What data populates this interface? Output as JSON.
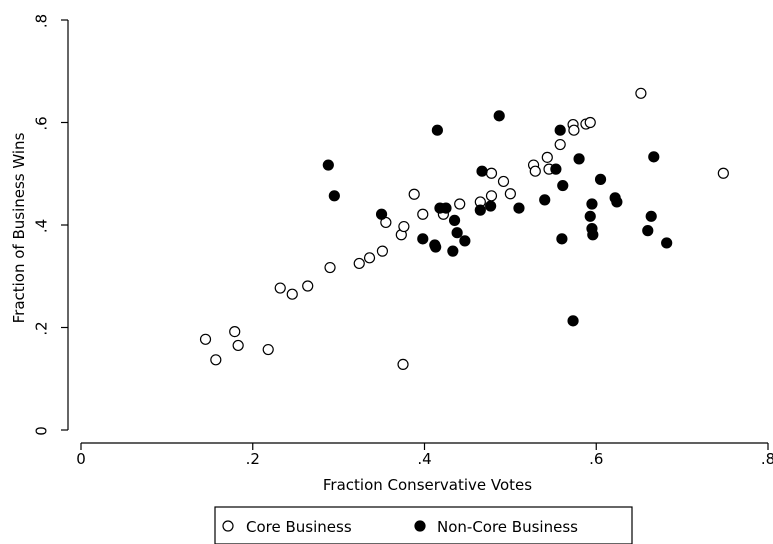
{
  "chart_data": {
    "type": "scatter",
    "xlabel": "Fraction Conservative Votes",
    "ylabel": "Fraction of Business Wins",
    "xlim": [
      0,
      0.8
    ],
    "ylim": [
      0,
      0.8
    ],
    "x_ticks": [
      {
        "value": 0,
        "label": "0"
      },
      {
        "value": 0.2,
        "label": ".2"
      },
      {
        "value": 0.4,
        "label": ".4"
      },
      {
        "value": 0.6,
        "label": ".6"
      },
      {
        "value": 0.8,
        "label": ".8"
      }
    ],
    "y_ticks": [
      {
        "value": 0,
        "label": "0"
      },
      {
        "value": 0.2,
        "label": ".2"
      },
      {
        "value": 0.4,
        "label": ".4"
      },
      {
        "value": 0.6,
        "label": ".6"
      },
      {
        "value": 0.8,
        "label": ".8"
      }
    ],
    "grid": false,
    "legend": {
      "position": "bottom"
    },
    "series": [
      {
        "name": "Core Business",
        "marker": "hollow-circle",
        "points": [
          [
            0.145,
            0.177
          ],
          [
            0.157,
            0.137
          ],
          [
            0.179,
            0.192
          ],
          [
            0.183,
            0.165
          ],
          [
            0.218,
            0.157
          ],
          [
            0.232,
            0.277
          ],
          [
            0.246,
            0.265
          ],
          [
            0.264,
            0.281
          ],
          [
            0.29,
            0.317
          ],
          [
            0.324,
            0.325
          ],
          [
            0.336,
            0.336
          ],
          [
            0.351,
            0.349
          ],
          [
            0.355,
            0.405
          ],
          [
            0.373,
            0.381
          ],
          [
            0.376,
            0.397
          ],
          [
            0.375,
            0.128
          ],
          [
            0.388,
            0.46
          ],
          [
            0.398,
            0.421
          ],
          [
            0.419,
            0.432
          ],
          [
            0.422,
            0.421
          ],
          [
            0.441,
            0.441
          ],
          [
            0.465,
            0.445
          ],
          [
            0.478,
            0.457
          ],
          [
            0.478,
            0.501
          ],
          [
            0.492,
            0.485
          ],
          [
            0.5,
            0.461
          ],
          [
            0.527,
            0.517
          ],
          [
            0.529,
            0.505
          ],
          [
            0.543,
            0.532
          ],
          [
            0.545,
            0.509
          ],
          [
            0.558,
            0.557
          ],
          [
            0.573,
            0.596
          ],
          [
            0.574,
            0.585
          ],
          [
            0.588,
            0.597
          ],
          [
            0.593,
            0.6
          ],
          [
            0.652,
            0.657
          ],
          [
            0.748,
            0.501
          ]
        ]
      },
      {
        "name": "Non-Core Business",
        "marker": "solid-circle",
        "points": [
          [
            0.288,
            0.517
          ],
          [
            0.295,
            0.457
          ],
          [
            0.35,
            0.421
          ],
          [
            0.398,
            0.373
          ],
          [
            0.412,
            0.361
          ],
          [
            0.413,
            0.357
          ],
          [
            0.415,
            0.585
          ],
          [
            0.418,
            0.433
          ],
          [
            0.425,
            0.433
          ],
          [
            0.433,
            0.349
          ],
          [
            0.435,
            0.409
          ],
          [
            0.438,
            0.385
          ],
          [
            0.447,
            0.369
          ],
          [
            0.465,
            0.429
          ],
          [
            0.467,
            0.505
          ],
          [
            0.477,
            0.437
          ],
          [
            0.487,
            0.613
          ],
          [
            0.51,
            0.433
          ],
          [
            0.54,
            0.449
          ],
          [
            0.553,
            0.509
          ],
          [
            0.558,
            0.585
          ],
          [
            0.56,
            0.373
          ],
          [
            0.561,
            0.477
          ],
          [
            0.573,
            0.213
          ],
          [
            0.58,
            0.529
          ],
          [
            0.593,
            0.417
          ],
          [
            0.595,
            0.441
          ],
          [
            0.595,
            0.393
          ],
          [
            0.596,
            0.381
          ],
          [
            0.605,
            0.489
          ],
          [
            0.622,
            0.453
          ],
          [
            0.624,
            0.445
          ],
          [
            0.66,
            0.389
          ],
          [
            0.664,
            0.417
          ],
          [
            0.667,
            0.533
          ],
          [
            0.682,
            0.365
          ]
        ]
      }
    ]
  }
}
